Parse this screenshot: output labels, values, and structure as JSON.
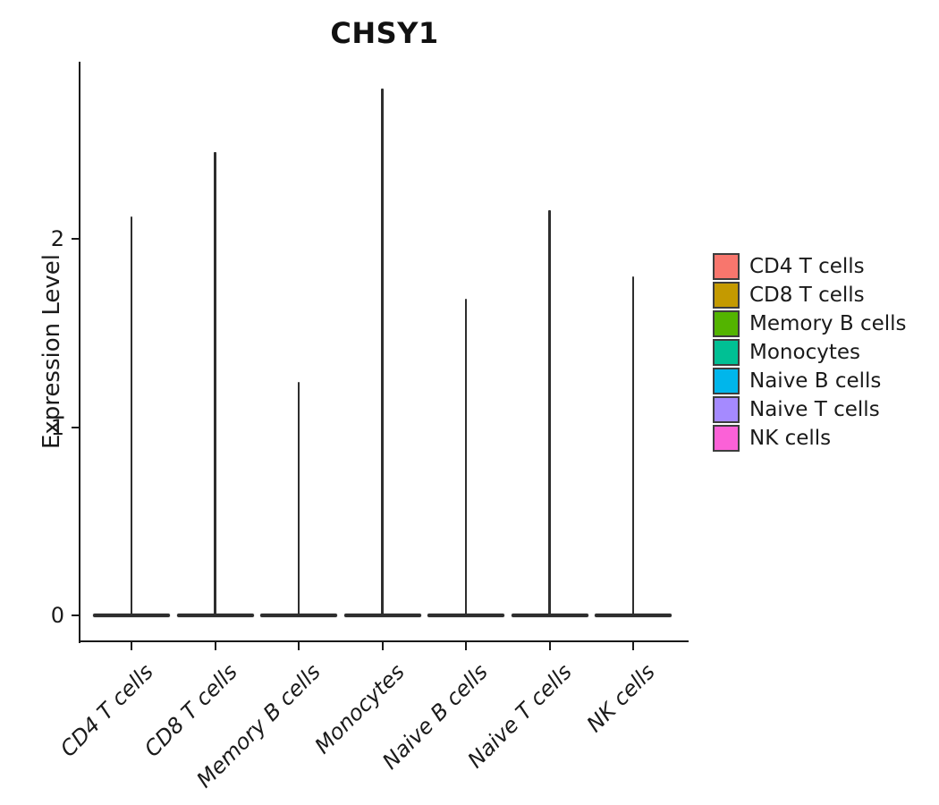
{
  "chart_data": {
    "type": "violin",
    "title": "CHSY1",
    "xlabel": "",
    "ylabel": "Expression Level",
    "categories": [
      "CD4 T cells",
      "CD8 T cells",
      "Memory B cells",
      "Monocytes",
      "Naive B cells",
      "Naive T cells",
      "NK cells"
    ],
    "series": [
      {
        "name": "CD4 T cells",
        "color": "#F8766D",
        "max_expression": 2.12
      },
      {
        "name": "CD8 T cells",
        "color": "#C49A00",
        "max_expression": 2.46
      },
      {
        "name": "Memory B cells",
        "color": "#53B400",
        "max_expression": 1.24
      },
      {
        "name": "Monocytes",
        "color": "#00C094",
        "max_expression": 2.8
      },
      {
        "name": "Naive B cells",
        "color": "#00B6EB",
        "max_expression": 1.68
      },
      {
        "name": "Naive T cells",
        "color": "#A58AFF",
        "max_expression": 2.15
      },
      {
        "name": "NK cells",
        "color": "#FB61D7",
        "max_expression": 1.8
      }
    ],
    "yticks": [
      0,
      1,
      2
    ],
    "ylim": [
      -0.1,
      2.9
    ],
    "grid": false,
    "legend_position": "right",
    "violin_stroke": "#2E2E2E",
    "shape_note": "each violin has its density mass concentrated at 0 (flat wide base) with a thin spike tail rising to max_expression"
  }
}
